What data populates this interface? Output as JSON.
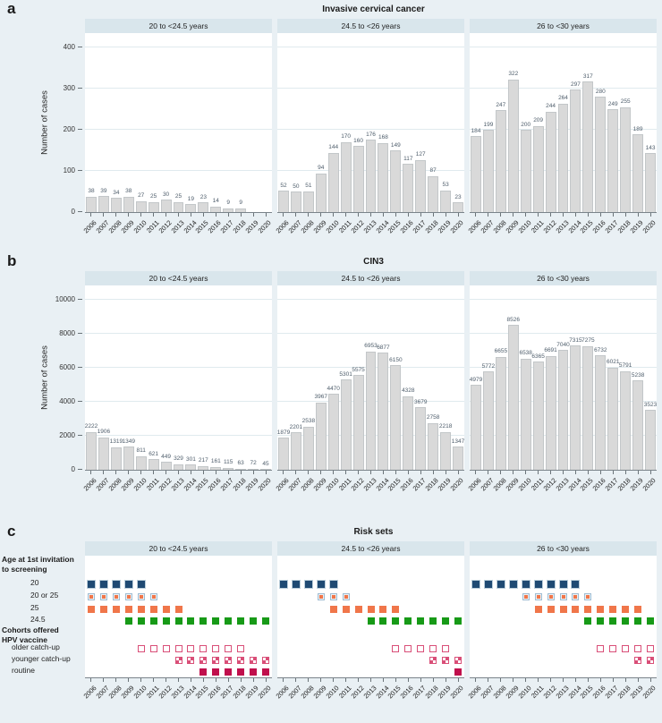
{
  "colors": {
    "page_bg": "#e9f0f4",
    "header_strip": "#d9e6ec",
    "bar_fill": "#d9d9d9",
    "bar_border": "#c3c7c9",
    "grid": "#e0eaee",
    "navy": "#1f4a73",
    "orange": "#f0764a",
    "green": "#179a17",
    "pink": "#d94f78",
    "crimson": "#c00f4c"
  },
  "panels": {
    "a": {
      "label": "a",
      "title": "Invasive cervical cancer"
    },
    "b": {
      "label": "b",
      "title": "CIN3"
    },
    "c": {
      "label": "c",
      "title": "Risk sets"
    }
  },
  "legend": {
    "screening_title_1": "Age at 1st invitation",
    "screening_title_2": "to screening",
    "vaccine_title_1": "Cohorts offered",
    "vaccine_title_2": "HPV vaccine"
  },
  "chart_data": [
    {
      "type": "bar",
      "panel": "a",
      "title": "Invasive cervical cancer",
      "ylabel": "Number of cases",
      "ylim": [
        0,
        400
      ],
      "yticks": [
        0,
        100,
        200,
        300,
        400
      ],
      "categories": [
        "2006",
        "2007",
        "2008",
        "2009",
        "2010",
        "2011",
        "2012",
        "2013",
        "2014",
        "2015",
        "2016",
        "2017",
        "2018",
        "2019",
        "2020"
      ],
      "series": [
        {
          "name": "20 to <24.5 years",
          "values": [
            38,
            39,
            34,
            38,
            27,
            25,
            30,
            25,
            19,
            23,
            14,
            9,
            9,
            null,
            null
          ]
        },
        {
          "name": "24.5 to <26 years",
          "values": [
            52,
            50,
            51,
            94,
            144,
            170,
            160,
            176,
            168,
            149,
            117,
            127,
            87,
            53,
            23
          ]
        },
        {
          "name": "26 to <30 years",
          "values": [
            184,
            199,
            247,
            322,
            200,
            209,
            244,
            264,
            297,
            317,
            280,
            249,
            255,
            189,
            143
          ]
        }
      ]
    },
    {
      "type": "bar",
      "panel": "b",
      "title": "CIN3",
      "ylabel": "Number of cases",
      "ylim": [
        0,
        10000
      ],
      "yticks": [
        0,
        2000,
        4000,
        6000,
        8000,
        10000
      ],
      "categories": [
        "2006",
        "2007",
        "2008",
        "2009",
        "2010",
        "2011",
        "2012",
        "2013",
        "2014",
        "2015",
        "2016",
        "2017",
        "2018",
        "2019",
        "2020"
      ],
      "series": [
        {
          "name": "20 to <24.5 years",
          "values": [
            2222,
            1906,
            1319,
            1349,
            811,
            621,
            449,
            329,
            301,
            217,
            161,
            115,
            63,
            72,
            45
          ]
        },
        {
          "name": "24.5 to <26 years",
          "values": [
            1879,
            2201,
            2538,
            3967,
            4470,
            5301,
            5575,
            6953,
            6877,
            6150,
            4328,
            3679,
            2758,
            2218,
            1347
          ]
        },
        {
          "name": "26 to <30 years",
          "values": [
            4979,
            5772,
            6655,
            8526,
            6538,
            6365,
            6691,
            7040,
            7315,
            7275,
            6732,
            6021,
            5791,
            5238,
            3523
          ]
        }
      ]
    },
    {
      "type": "scatter",
      "panel": "c",
      "title": "Risk sets",
      "categories": [
        "2006",
        "2007",
        "2008",
        "2009",
        "2010",
        "2011",
        "2012",
        "2013",
        "2014",
        "2015",
        "2016",
        "2017",
        "2018",
        "2019",
        "2020"
      ],
      "rows": [
        {
          "key": "age_20",
          "label": "20",
          "style": "navy",
          "group": "screening"
        },
        {
          "key": "age_20_or_25",
          "label": "20 or 25",
          "style": "framed",
          "group": "screening"
        },
        {
          "key": "age_25",
          "label": "25",
          "style": "orange",
          "group": "screening"
        },
        {
          "key": "age_24_5",
          "label": "24.5",
          "style": "green",
          "group": "screening"
        },
        {
          "key": "older_catch_up",
          "label": "older catch-up",
          "style": "open-pink",
          "group": "vaccine"
        },
        {
          "key": "younger_catch_up",
          "label": "younger catch-up",
          "style": "checker-pink",
          "group": "vaccine"
        },
        {
          "key": "routine",
          "label": "routine",
          "style": "solid-crimson",
          "group": "vaccine"
        }
      ],
      "subplots": [
        {
          "name": "20 to <24.5 years",
          "marks": {
            "age_20": [
              "2006",
              "2007",
              "2008",
              "2009",
              "2010"
            ],
            "age_20_or_25": [
              "2006",
              "2007",
              "2008",
              "2009",
              "2010",
              "2011"
            ],
            "age_25": [
              "2006",
              "2007",
              "2008",
              "2009",
              "2010",
              "2011",
              "2012",
              "2013"
            ],
            "age_24_5": [
              "2009",
              "2010",
              "2011",
              "2012",
              "2013",
              "2014",
              "2015",
              "2016",
              "2017",
              "2018",
              "2019",
              "2020"
            ],
            "older_catch_up": [
              "2010",
              "2011",
              "2012",
              "2013",
              "2014",
              "2015",
              "2016",
              "2017",
              "2018"
            ],
            "younger_catch_up": [
              "2013",
              "2014",
              "2015",
              "2016",
              "2017",
              "2018",
              "2019",
              "2020"
            ],
            "routine": [
              "2015",
              "2016",
              "2017",
              "2018",
              "2019",
              "2020"
            ]
          }
        },
        {
          "name": "24.5 to <26 years",
          "marks": {
            "age_20": [
              "2006",
              "2007",
              "2008",
              "2009",
              "2010"
            ],
            "age_20_or_25": [
              "2009",
              "2010",
              "2011"
            ],
            "age_25": [
              "2010",
              "2011",
              "2012",
              "2013",
              "2014",
              "2015"
            ],
            "age_24_5": [
              "2013",
              "2014",
              "2015",
              "2016",
              "2017",
              "2018",
              "2019",
              "2020"
            ],
            "older_catch_up": [
              "2015",
              "2016",
              "2017",
              "2018",
              "2019"
            ],
            "younger_catch_up": [
              "2018",
              "2019",
              "2020"
            ],
            "routine": [
              "2020"
            ]
          }
        },
        {
          "name": "26 to <30 years",
          "marks": {
            "age_20": [
              "2006",
              "2007",
              "2008",
              "2009",
              "2010",
              "2011",
              "2012",
              "2013",
              "2014"
            ],
            "age_20_or_25": [
              "2010",
              "2011",
              "2012",
              "2013",
              "2014",
              "2015"
            ],
            "age_25": [
              "2011",
              "2012",
              "2013",
              "2014",
              "2015",
              "2016",
              "2017",
              "2018",
              "2019"
            ],
            "age_24_5": [
              "2015",
              "2016",
              "2017",
              "2018",
              "2019",
              "2020"
            ],
            "older_catch_up": [
              "2016",
              "2017",
              "2018",
              "2019",
              "2020"
            ],
            "younger_catch_up": [
              "2019",
              "2020"
            ],
            "routine": []
          }
        }
      ]
    }
  ]
}
